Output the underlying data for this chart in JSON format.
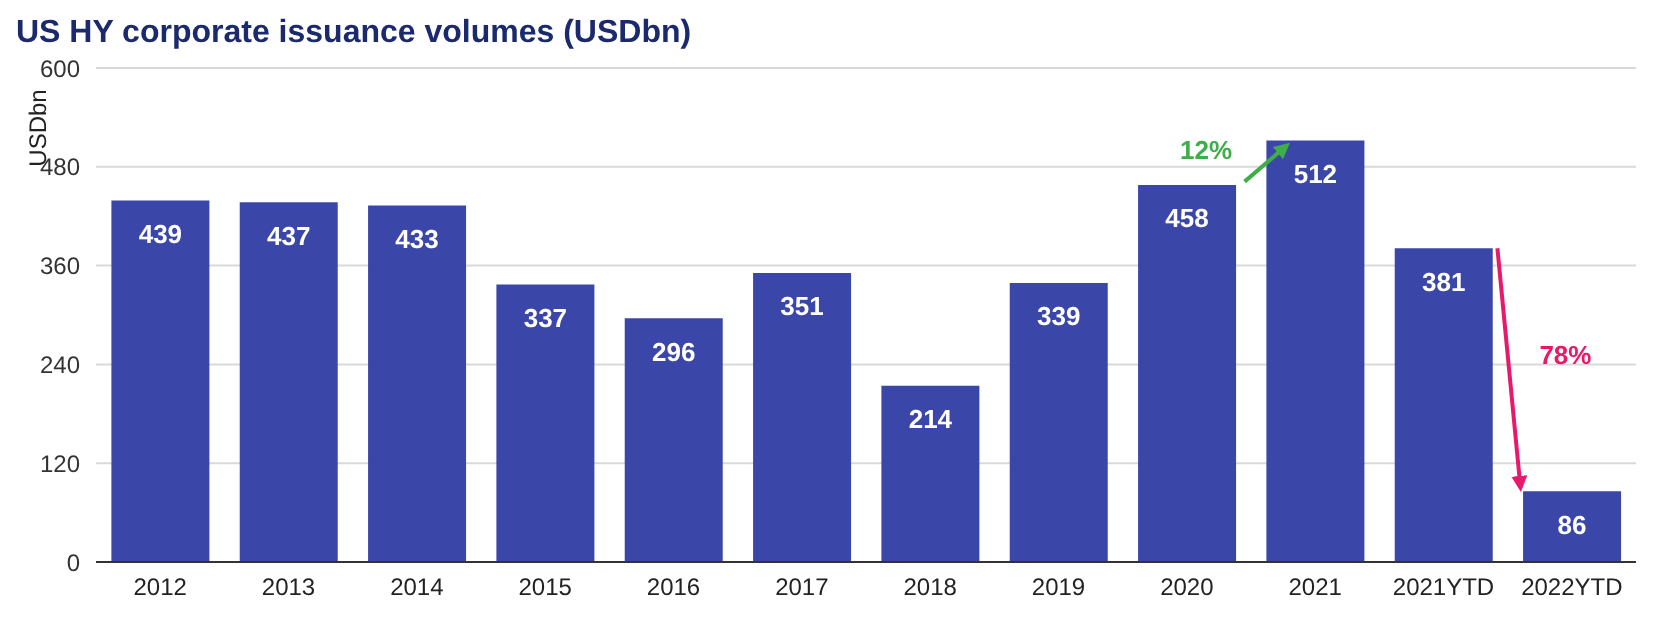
{
  "chart_data": {
    "type": "bar",
    "title": "US HY corporate issuance volumes (USDbn)",
    "ylabel": "USDbn",
    "categories": [
      "2012",
      "2013",
      "2014",
      "2015",
      "2016",
      "2017",
      "2018",
      "2019",
      "2020",
      "2021",
      "2021YTD",
      "2022YTD"
    ],
    "values": [
      439,
      437,
      433,
      337,
      296,
      351,
      214,
      339,
      458,
      512,
      381,
      86
    ],
    "color": "#3a47a8",
    "ylim": [
      0,
      600
    ],
    "yticks": [
      0,
      120,
      240,
      360,
      480,
      600
    ],
    "grid": "y",
    "data_labels": true,
    "annotations": [
      "12%",
      "78%"
    ]
  }
}
